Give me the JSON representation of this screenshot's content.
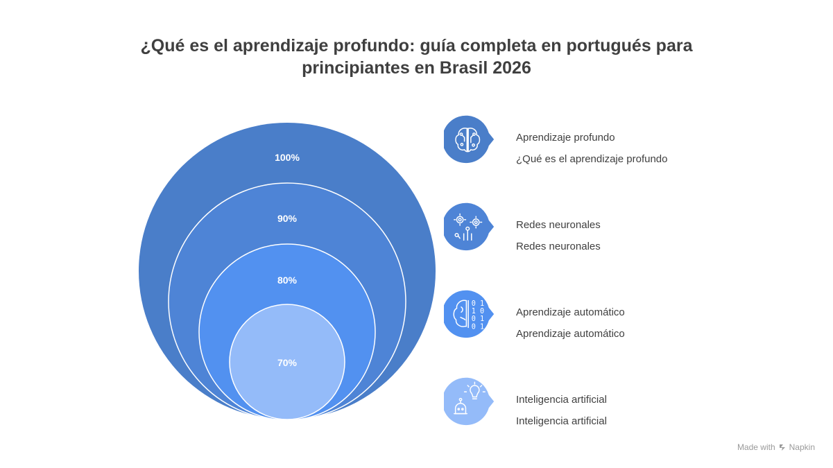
{
  "title_line1": "¿Qué es el aprendizaje profundo: guía completa en portugués para",
  "title_line2": "principiantes en Brasil 2026",
  "rings": [
    {
      "label": "100%",
      "color": "#4a7ec9"
    },
    {
      "label": "90%",
      "color": "#4e84d6"
    },
    {
      "label": "80%",
      "color": "#5291f0"
    },
    {
      "label": "70%",
      "color": "#94bbf9"
    }
  ],
  "legend": [
    {
      "title": "Aprendizaje profundo",
      "subtitle": "¿Qué es el aprendizaje profundo",
      "icon": "brain-circuit-icon",
      "color": "#4a7ec9"
    },
    {
      "title": "Redes neuronales",
      "subtitle": "Redes neuronales",
      "icon": "gears-network-icon",
      "color": "#4e84d6"
    },
    {
      "title": "Aprendizaje automático",
      "subtitle": "Aprendizaje automático",
      "icon": "brain-binary-icon",
      "color": "#5291f0"
    },
    {
      "title": "Inteligencia artificial",
      "subtitle": "Inteligencia artificial",
      "icon": "robot-idea-icon",
      "color": "#94bbf9"
    }
  ],
  "footer": {
    "made_with": "Made with",
    "brand": "Napkin"
  }
}
